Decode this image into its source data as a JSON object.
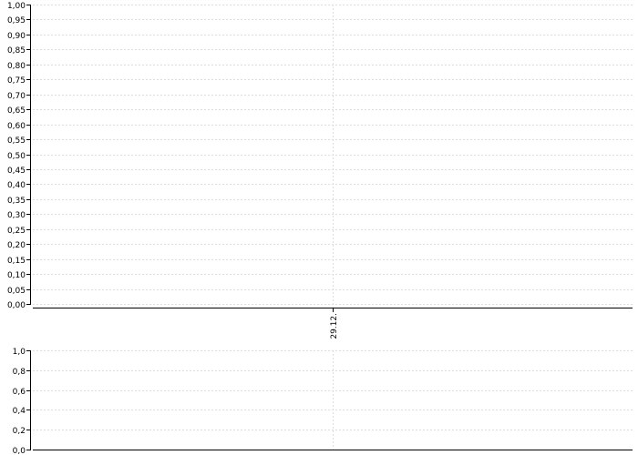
{
  "chart_data": [
    {
      "type": "line",
      "title": "",
      "xlabel": "",
      "ylabel": "",
      "x_ticks": [
        "29.12."
      ],
      "y_ticks": [
        "0,00",
        "0,05",
        "0,10",
        "0,15",
        "0,20",
        "0,25",
        "0,30",
        "0,35",
        "0,40",
        "0,45",
        "0,50",
        "0,55",
        "0,60",
        "0,65",
        "0,70",
        "0,75",
        "0,80",
        "0,85",
        "0,90",
        "0,95",
        "1,00"
      ],
      "ylim": [
        0,
        1
      ],
      "grid": true,
      "series": []
    },
    {
      "type": "line",
      "title": "",
      "xlabel": "",
      "ylabel": "",
      "x_ticks": [
        "29.12."
      ],
      "y_ticks": [
        "0,0",
        "0,2",
        "0,4",
        "0,6",
        "0,8",
        "1,0"
      ],
      "ylim": [
        0,
        1
      ],
      "grid": true,
      "series": []
    }
  ],
  "colors": {
    "grid": "#dddddd",
    "axis": "#000000"
  }
}
